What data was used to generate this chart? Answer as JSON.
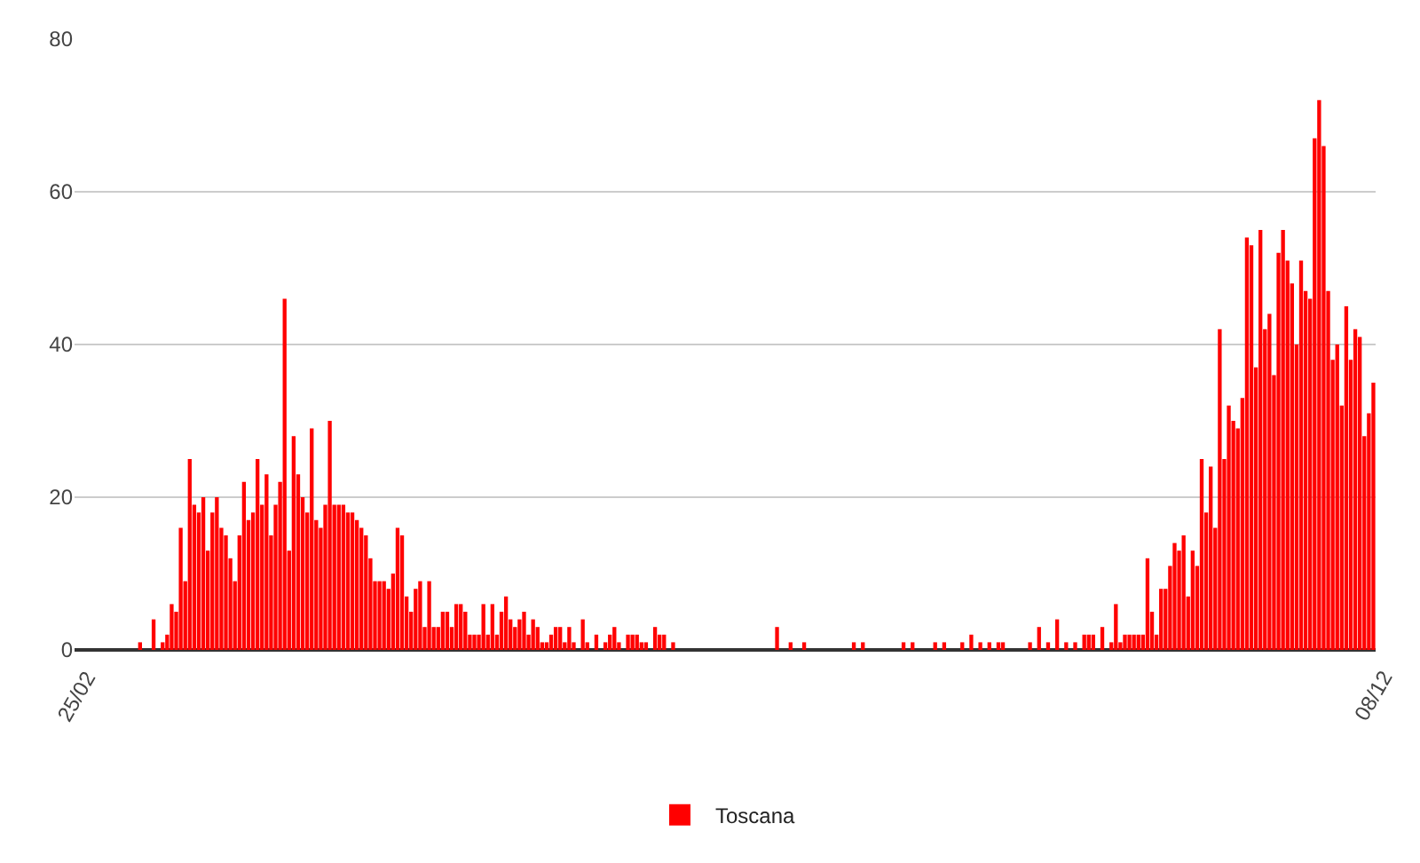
{
  "chart_data": {
    "type": "bar",
    "categories": [
      "25/02",
      null,
      null,
      null,
      null,
      null,
      null,
      null,
      null,
      null,
      null,
      null,
      null,
      null,
      null,
      null,
      null,
      null,
      null,
      null,
      null,
      null,
      null,
      null,
      null,
      null,
      null,
      null,
      null,
      null,
      null,
      null,
      null,
      null,
      null,
      null,
      null,
      null,
      null,
      null,
      null,
      null,
      null,
      null,
      null,
      null,
      null,
      null,
      null,
      null,
      null,
      null,
      null,
      null,
      null,
      null,
      null,
      null,
      null,
      null,
      null,
      null,
      null,
      null,
      null,
      null,
      null,
      null,
      null,
      null,
      null,
      null,
      null,
      null,
      null,
      null,
      null,
      null,
      null,
      null,
      null,
      null,
      null,
      null,
      null,
      null,
      null,
      null,
      null,
      null,
      null,
      null,
      null,
      null,
      null,
      null,
      null,
      null,
      null,
      null,
      null,
      null,
      null,
      null,
      null,
      null,
      null,
      null,
      null,
      null,
      null,
      null,
      null,
      null,
      null,
      null,
      null,
      null,
      null,
      null,
      null,
      null,
      null,
      null,
      null,
      null,
      null,
      null,
      null,
      null,
      null,
      null,
      null,
      null,
      null,
      null,
      null,
      null,
      null,
      null,
      null,
      null,
      null,
      null,
      null,
      null,
      null,
      null,
      null,
      null,
      null,
      null,
      null,
      null,
      null,
      null,
      null,
      null,
      null,
      null,
      null,
      null,
      null,
      null,
      null,
      null,
      null,
      null,
      null,
      null,
      null,
      null,
      null,
      null,
      null,
      null,
      null,
      null,
      null,
      null,
      null,
      null,
      null,
      null,
      null,
      null,
      null,
      null,
      null,
      null,
      null,
      null,
      null,
      null,
      null,
      null,
      null,
      null,
      null,
      null,
      null,
      null,
      null,
      null,
      null,
      null,
      null,
      null,
      null,
      null,
      null,
      null,
      null,
      null,
      null,
      null,
      null,
      null,
      null,
      null,
      null,
      null,
      null,
      null,
      null,
      null,
      null,
      null,
      null,
      null,
      null,
      null,
      null,
      null,
      null,
      null,
      null,
      null,
      null,
      null,
      null,
      null,
      null,
      null,
      null,
      null,
      null,
      null,
      null,
      null,
      null,
      null,
      null,
      null,
      null,
      null,
      null,
      null,
      null,
      null,
      null,
      null,
      null,
      null,
      null,
      null,
      null,
      null,
      null,
      null,
      null,
      null,
      null,
      null,
      null,
      null,
      null,
      null,
      null,
      null,
      null,
      null,
      null,
      null,
      null,
      null,
      null,
      "08/12"
    ],
    "series": [
      {
        "name": "Toscana",
        "color": "#ff0000",
        "values": [
          0,
          0,
          0,
          0,
          0,
          0,
          0,
          0,
          0,
          0,
          0,
          0,
          0,
          0,
          1,
          0,
          0,
          4,
          0,
          1,
          2,
          6,
          5,
          16,
          9,
          25,
          19,
          18,
          20,
          13,
          18,
          20,
          16,
          15,
          12,
          9,
          15,
          22,
          17,
          18,
          25,
          19,
          23,
          15,
          19,
          22,
          46,
          13,
          28,
          23,
          20,
          18,
          29,
          17,
          16,
          19,
          30,
          19,
          19,
          19,
          18,
          18,
          17,
          16,
          15,
          12,
          9,
          9,
          9,
          8,
          10,
          16,
          15,
          7,
          5,
          8,
          9,
          3,
          9,
          3,
          3,
          5,
          5,
          3,
          6,
          6,
          5,
          2,
          2,
          2,
          6,
          2,
          6,
          2,
          5,
          7,
          4,
          3,
          4,
          5,
          2,
          4,
          3,
          1,
          1,
          2,
          3,
          3,
          1,
          3,
          1,
          0,
          4,
          1,
          0,
          2,
          0,
          1,
          2,
          3,
          1,
          0,
          2,
          2,
          2,
          1,
          1,
          0,
          3,
          2,
          2,
          0,
          1,
          0,
          0,
          0,
          0,
          0,
          0,
          0,
          0,
          0,
          0,
          0,
          0,
          0,
          0,
          0,
          0,
          0,
          0,
          0,
          0,
          0,
          0,
          3,
          0,
          0,
          1,
          0,
          0,
          1,
          0,
          0,
          0,
          0,
          0,
          0,
          0,
          0,
          0,
          0,
          1,
          0,
          1,
          0,
          0,
          0,
          0,
          0,
          0,
          0,
          0,
          1,
          0,
          1,
          0,
          0,
          0,
          0,
          1,
          0,
          1,
          0,
          0,
          0,
          1,
          0,
          2,
          0,
          1,
          0,
          1,
          0,
          1,
          1,
          0,
          0,
          0,
          0,
          0,
          1,
          0,
          3,
          0,
          1,
          0,
          4,
          0,
          1,
          0,
          1,
          0,
          2,
          2,
          2,
          0,
          3,
          0,
          1,
          6,
          1,
          2,
          2,
          2,
          2,
          2,
          12,
          5,
          2,
          8,
          8,
          11,
          14,
          13,
          15,
          7,
          13,
          11,
          25,
          18,
          24,
          16,
          42,
          25,
          32,
          30,
          29,
          33,
          54,
          53,
          37,
          55,
          42,
          44,
          36,
          52,
          55,
          51,
          48,
          40,
          51,
          47,
          46,
          67,
          72,
          66,
          47,
          38,
          40,
          32,
          45,
          38,
          42,
          41,
          28,
          31,
          35
        ]
      }
    ],
    "ylim": [
      0,
      80
    ],
    "yticks": [
      0,
      20,
      40,
      60,
      80
    ],
    "grid": "y",
    "legend": "bottom"
  }
}
